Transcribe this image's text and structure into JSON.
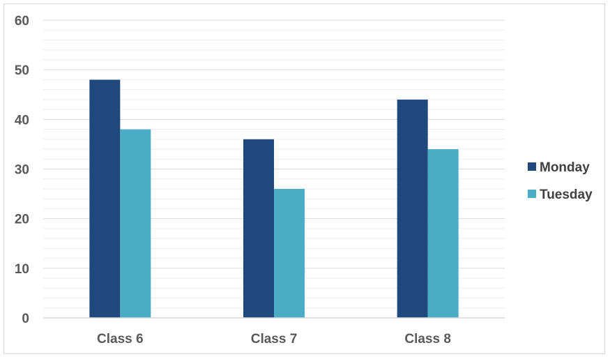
{
  "chart_data": {
    "type": "bar",
    "categories": [
      "Class 6",
      "Class 7",
      "Class 8"
    ],
    "series": [
      {
        "name": "Monday",
        "values": [
          48,
          36,
          44
        ],
        "color": "#1f497d"
      },
      {
        "name": "Tuesday",
        "values": [
          38,
          26,
          34
        ],
        "color": "#4bacc6"
      }
    ],
    "ylim": [
      0,
      60
    ],
    "yticks": [
      0,
      10,
      20,
      30,
      40,
      50,
      60
    ],
    "grid": true,
    "minor_grid": true,
    "legend_position": "right",
    "title": "",
    "xlabel": "",
    "ylabel": ""
  }
}
